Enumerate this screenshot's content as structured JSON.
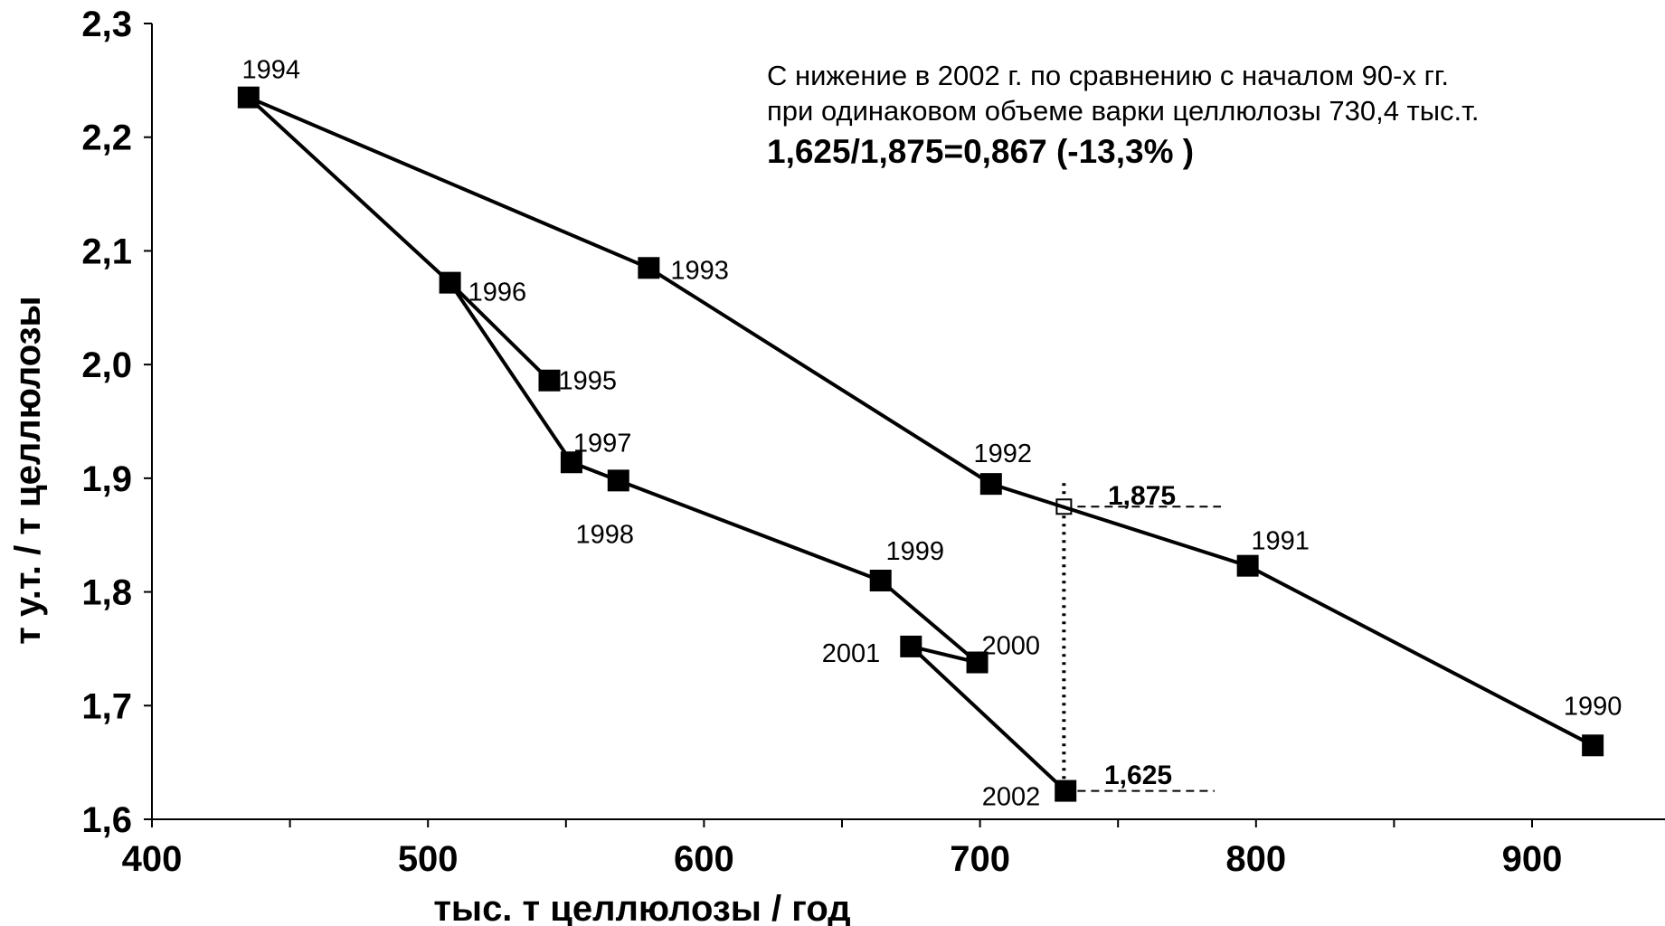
{
  "chart_data": {
    "type": "line",
    "title": "",
    "xlabel": "тыс. т целлюлозы / год",
    "ylabel": "т у.т. / т целлюлозы",
    "xlim": [
      400,
      950
    ],
    "ylim": [
      1.6,
      2.3
    ],
    "x_ticks": [
      400,
      500,
      600,
      700,
      800,
      900
    ],
    "x_tick_labels": [
      "400",
      "500",
      "600",
      "700",
      "800",
      "900"
    ],
    "y_ticks": [
      1.6,
      1.7,
      1.8,
      1.9,
      2.0,
      2.1,
      2.2,
      2.3
    ],
    "y_tick_labels": [
      "1,6",
      "1,7",
      "1,8",
      "1,9",
      "2,0",
      "2,1",
      "2,2",
      "2,3"
    ],
    "grid": false,
    "series": [
      {
        "color": "#000000",
        "points": [
          {
            "year": "1990",
            "x": 922,
            "y": 1.665
          },
          {
            "year": "1991",
            "x": 797,
            "y": 1.823
          },
          {
            "year": "1992",
            "x": 704,
            "y": 1.895
          },
          {
            "year": "1993",
            "x": 580,
            "y": 2.085
          },
          {
            "year": "1994",
            "x": 435,
            "y": 2.235
          },
          {
            "year": "1996",
            "x": 508,
            "y": 2.072
          },
          {
            "year": "1995",
            "x": 544,
            "y": 1.986
          },
          {
            "year": "1997",
            "x": 552,
            "y": 1.914
          },
          {
            "year": "1998",
            "x": 569,
            "y": 1.898
          },
          {
            "year": "1999",
            "x": 664,
            "y": 1.81
          },
          {
            "year": "2000",
            "x": 699,
            "y": 1.738
          },
          {
            "year": "2001",
            "x": 675,
            "y": 1.752
          },
          {
            "year": "2002",
            "x": 731,
            "y": 1.625
          }
        ],
        "path_order": [
          "1990",
          "1991",
          "1992",
          "1993",
          "1994",
          "1996",
          "1995",
          "1996",
          "1997",
          "1998",
          "1999",
          "2000",
          "2001",
          "2002"
        ]
      }
    ],
    "reference": {
      "x": 730.4,
      "upper": {
        "y": 1.875,
        "label": "1,875"
      },
      "lower": {
        "y": 1.625,
        "label": "1,625"
      }
    },
    "annotation": {
      "line1": "С нижение в 2002 г. по сравнению с началом 90-х гг.",
      "line2": "при одинаковом объеме варки целлюлозы 730,4 тыс.т.",
      "line3": "1,625/1,875=0,867 (-13,3% )"
    }
  }
}
